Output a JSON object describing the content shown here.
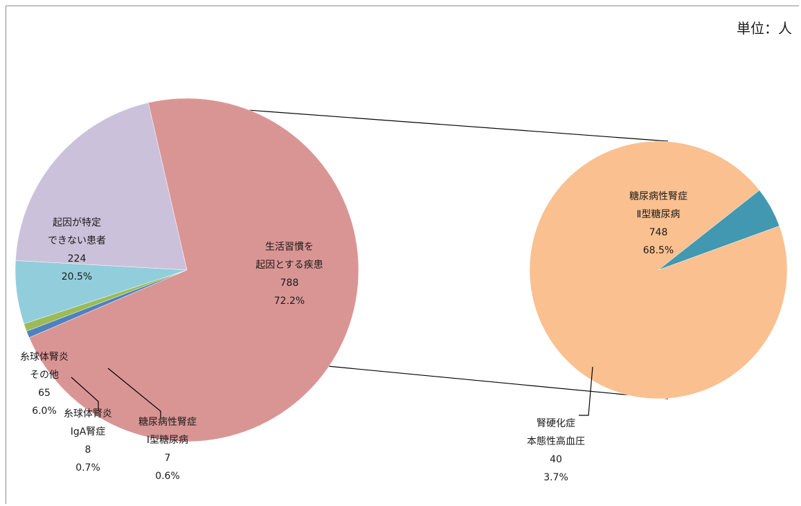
{
  "unit_label": "単位：人",
  "chart_data": {
    "type": "bar-of-pie",
    "unit": "人",
    "primary": {
      "slices": [
        {
          "id": "lifestyle",
          "lines": [
            "生活習慣を",
            "起因とする疾患"
          ],
          "value": 788,
          "percent": "72.2%",
          "color": "#d99594"
        },
        {
          "id": "dm1",
          "lines": [
            "糖尿病性腎症",
            "Ⅰ型糖尿病"
          ],
          "value": 7,
          "percent": "0.6%",
          "color": "#4f81bd"
        },
        {
          "id": "iga",
          "lines": [
            "糸球体腎炎",
            "IgA腎症"
          ],
          "value": 8,
          "percent": "0.7%",
          "color": "#9bbb59"
        },
        {
          "id": "gn-other",
          "lines": [
            "糸球体腎炎",
            "その他"
          ],
          "value": 65,
          "percent": "6.0%",
          "color": "#92cddc"
        },
        {
          "id": "unknown",
          "lines": [
            "起因が特定",
            "できない患者"
          ],
          "value": 224,
          "percent": "20.5%",
          "color": "#ccc1da"
        }
      ]
    },
    "secondary": {
      "breakdown_of": "lifestyle",
      "slices": [
        {
          "id": "dm2",
          "lines": [
            "糖尿病性腎症",
            "Ⅱ型糖尿病"
          ],
          "value": 748,
          "percent": "68.5%",
          "color": "#fac090"
        },
        {
          "id": "nephrosclerosis",
          "lines": [
            "腎硬化症",
            "本態性高血圧"
          ],
          "value": 40,
          "percent": "3.7%",
          "color": "#4198b0"
        }
      ]
    }
  }
}
